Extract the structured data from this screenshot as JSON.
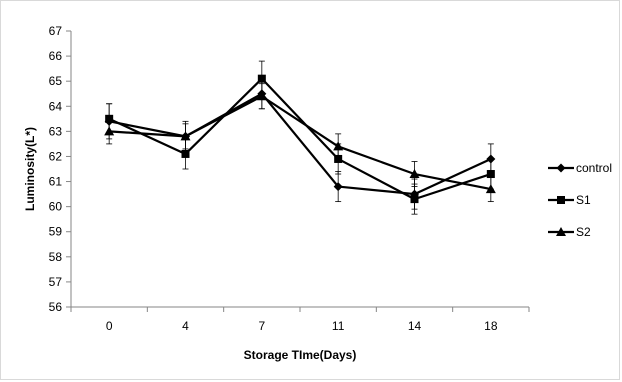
{
  "chart_data": {
    "type": "line",
    "title": "",
    "xlabel": "Storage TIme(Days)",
    "ylabel": "Luminosity(L*)",
    "categories": [
      "0",
      "4",
      "7",
      "11",
      "14",
      "18"
    ],
    "ylim": [
      56,
      67
    ],
    "yticks": [
      56,
      57,
      58,
      59,
      60,
      61,
      62,
      63,
      64,
      65,
      66,
      67
    ],
    "grid": false,
    "legend_position": "right",
    "series": [
      {
        "name": "control",
        "marker": "diamond",
        "color": "#000000",
        "values": [
          63.4,
          62.8,
          64.5,
          60.8,
          60.5,
          61.9
        ],
        "error": [
          0.7,
          0.6,
          0.6,
          0.6,
          0.6,
          0.6
        ]
      },
      {
        "name": "S1",
        "marker": "square",
        "color": "#000000",
        "values": [
          63.5,
          62.1,
          65.1,
          61.9,
          60.3,
          61.3
        ],
        "error": [
          0.6,
          0.6,
          0.7,
          0.6,
          0.6,
          0.6
        ]
      },
      {
        "name": "S2",
        "marker": "triangle",
        "color": "#000000",
        "values": [
          63.0,
          62.8,
          64.4,
          62.4,
          61.3,
          60.7
        ],
        "error": [
          0.5,
          0.5,
          0.5,
          0.5,
          0.5,
          0.5
        ]
      }
    ]
  }
}
